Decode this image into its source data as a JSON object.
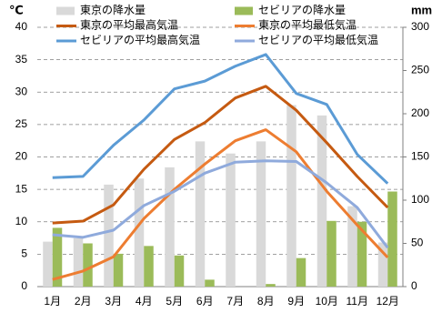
{
  "chart_data": {
    "type": "combo",
    "y_label": "℃",
    "y2_label": "mm",
    "categories": [
      "1月",
      "2月",
      "3月",
      "4月",
      "5月",
      "6月",
      "7月",
      "8月",
      "9月",
      "10月",
      "11月",
      "12月"
    ],
    "series": [
      {
        "name": "東京の降水量",
        "type": "bar",
        "axis": "y2",
        "color": "#d9d9d9",
        "values": [
          52,
          56,
          118,
          125,
          138,
          168,
          154,
          168,
          210,
          198,
          93,
          51
        ]
      },
      {
        "name": "セビリアの降水量",
        "type": "bar",
        "axis": "y2",
        "color": "#9bbb59",
        "values": [
          68,
          50,
          38,
          47,
          36,
          8,
          0,
          3,
          33,
          76,
          75,
          110
        ]
      },
      {
        "name": "東京の平均最高気温",
        "type": "line",
        "axis": "y",
        "color": "#c55a11",
        "values": [
          9.8,
          10.1,
          12.6,
          18.1,
          22.7,
          25.3,
          29.1,
          30.9,
          27.2,
          22.2,
          17.0,
          12.2
        ]
      },
      {
        "name": "東京の平均最低気温",
        "type": "line",
        "axis": "y",
        "color": "#ed7d31",
        "values": [
          1.1,
          2.4,
          4.6,
          10.5,
          15.0,
          18.9,
          22.5,
          24.2,
          20.8,
          14.7,
          9.5,
          4.5
        ]
      },
      {
        "name": "セビリアの平均最高気温",
        "type": "line",
        "axis": "y",
        "color": "#5b9bd5",
        "values": [
          16.8,
          17.0,
          21.8,
          25.7,
          30.5,
          31.7,
          34.0,
          35.8,
          29.8,
          28.1,
          20.4,
          15.9
        ]
      },
      {
        "name": "セビリアの平均最低気温",
        "type": "line",
        "axis": "y",
        "color": "#8faadc",
        "values": [
          8.0,
          7.6,
          8.7,
          12.5,
          14.7,
          17.5,
          19.2,
          19.4,
          19.3,
          16.0,
          12.2,
          6.0
        ]
      }
    ],
    "ylim": [
      0,
      40
    ],
    "yticks": [
      0,
      5,
      10,
      15,
      20,
      25,
      30,
      35,
      40
    ],
    "y2lim": [
      0,
      300
    ],
    "y2ticks": [
      0,
      50,
      100,
      150,
      200,
      250,
      300
    ],
    "grid": true
  }
}
